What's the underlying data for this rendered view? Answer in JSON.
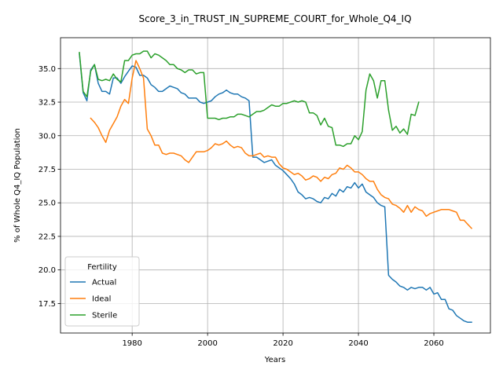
{
  "chart_data": {
    "type": "line",
    "title": "Score_3_in_TRUST_IN_SUPREME_COURT_for_Whole_Q4_IQ",
    "xlabel": "Years",
    "ylabel": "% of Whole Q4_IQ Population",
    "xlim": [
      1961,
      2075
    ],
    "ylim": [
      15.3,
      37.3
    ],
    "xticks": [
      1980,
      2000,
      2020,
      2040,
      2060
    ],
    "yticks": [
      17.5,
      20.0,
      22.5,
      25.0,
      27.5,
      30.0,
      32.5,
      35.0
    ],
    "ytick_labels": [
      "17.5",
      "20.0",
      "22.5",
      "25.0",
      "27.5",
      "30.0",
      "32.5",
      "35.0"
    ],
    "grid": true,
    "legend": {
      "title": "Fertility",
      "placement": "lower-left"
    },
    "series": [
      {
        "name": "Actual",
        "color": "#1f77b4",
        "points": [
          [
            1966,
            36.1
          ],
          [
            1967,
            33.2
          ],
          [
            1968,
            32.6
          ],
          [
            1969,
            34.9
          ],
          [
            1970,
            35.3
          ],
          [
            1971,
            33.9
          ],
          [
            1972,
            33.3
          ],
          [
            1973,
            33.3
          ],
          [
            1974,
            33.1
          ],
          [
            1975,
            34.3
          ],
          [
            1976,
            34.3
          ],
          [
            1977,
            33.9
          ],
          [
            1978,
            34.4
          ],
          [
            1979,
            34.8
          ],
          [
            1980,
            35.2
          ],
          [
            1981,
            35.1
          ],
          [
            1982,
            34.5
          ],
          [
            1983,
            34.5
          ],
          [
            1984,
            34.3
          ],
          [
            1985,
            33.8
          ],
          [
            1986,
            33.6
          ],
          [
            1987,
            33.3
          ],
          [
            1988,
            33.3
          ],
          [
            1989,
            33.5
          ],
          [
            1990,
            33.7
          ],
          [
            1991,
            33.6
          ],
          [
            1992,
            33.5
          ],
          [
            1993,
            33.2
          ],
          [
            1994,
            33.1
          ],
          [
            1995,
            32.8
          ],
          [
            1996,
            32.8
          ],
          [
            1997,
            32.8
          ],
          [
            1998,
            32.5
          ],
          [
            1999,
            32.4
          ],
          [
            2000,
            32.5
          ],
          [
            2001,
            32.6
          ],
          [
            2002,
            32.9
          ],
          [
            2003,
            33.1
          ],
          [
            2004,
            33.2
          ],
          [
            2005,
            33.4
          ],
          [
            2006,
            33.2
          ],
          [
            2007,
            33.1
          ],
          [
            2008,
            33.1
          ],
          [
            2009,
            32.9
          ],
          [
            2010,
            32.8
          ],
          [
            2011,
            32.6
          ],
          [
            2012,
            28.4
          ],
          [
            2013,
            28.4
          ],
          [
            2014,
            28.2
          ],
          [
            2015,
            28.0
          ],
          [
            2016,
            28.1
          ],
          [
            2017,
            28.2
          ],
          [
            2018,
            27.8
          ],
          [
            2019,
            27.6
          ],
          [
            2020,
            27.4
          ],
          [
            2021,
            27.1
          ],
          [
            2022,
            26.8
          ],
          [
            2023,
            26.4
          ],
          [
            2024,
            25.8
          ],
          [
            2025,
            25.6
          ],
          [
            2026,
            25.3
          ],
          [
            2027,
            25.4
          ],
          [
            2028,
            25.3
          ],
          [
            2029,
            25.1
          ],
          [
            2030,
            25.0
          ],
          [
            2031,
            25.4
          ],
          [
            2032,
            25.3
          ],
          [
            2033,
            25.7
          ],
          [
            2034,
            25.5
          ],
          [
            2035,
            26.0
          ],
          [
            2036,
            25.8
          ],
          [
            2037,
            26.2
          ],
          [
            2038,
            26.1
          ],
          [
            2039,
            26.5
          ],
          [
            2040,
            26.1
          ],
          [
            2041,
            26.4
          ],
          [
            2042,
            25.8
          ],
          [
            2043,
            25.6
          ],
          [
            2044,
            25.4
          ],
          [
            2045,
            25.0
          ],
          [
            2046,
            24.8
          ],
          [
            2047,
            24.7
          ],
          [
            2048,
            19.6
          ],
          [
            2049,
            19.3
          ],
          [
            2050,
            19.1
          ],
          [
            2051,
            18.8
          ],
          [
            2052,
            18.7
          ],
          [
            2053,
            18.5
          ],
          [
            2054,
            18.7
          ],
          [
            2055,
            18.6
          ],
          [
            2056,
            18.7
          ],
          [
            2057,
            18.7
          ],
          [
            2058,
            18.5
          ],
          [
            2059,
            18.7
          ],
          [
            2060,
            18.2
          ],
          [
            2061,
            18.3
          ],
          [
            2062,
            17.8
          ],
          [
            2063,
            17.8
          ],
          [
            2064,
            17.1
          ],
          [
            2065,
            17.0
          ],
          [
            2066,
            16.6
          ],
          [
            2067,
            16.4
          ],
          [
            2068,
            16.2
          ],
          [
            2069,
            16.1
          ],
          [
            2070,
            16.1
          ]
        ]
      },
      {
        "name": "Ideal",
        "color": "#ff7f0e",
        "points": [
          [
            1969,
            31.3
          ],
          [
            1970,
            31.0
          ],
          [
            1971,
            30.6
          ],
          [
            1972,
            30.0
          ],
          [
            1973,
            29.5
          ],
          [
            1974,
            30.4
          ],
          [
            1975,
            30.9
          ],
          [
            1976,
            31.4
          ],
          [
            1977,
            32.2
          ],
          [
            1978,
            32.7
          ],
          [
            1979,
            32.4
          ],
          [
            1980,
            34.3
          ],
          [
            1981,
            35.6
          ],
          [
            1982,
            35.0
          ],
          [
            1983,
            34.3
          ],
          [
            1984,
            30.5
          ],
          [
            1985,
            30.0
          ],
          [
            1986,
            29.3
          ],
          [
            1987,
            29.3
          ],
          [
            1988,
            28.7
          ],
          [
            1989,
            28.6
          ],
          [
            1990,
            28.7
          ],
          [
            1991,
            28.7
          ],
          [
            1992,
            28.6
          ],
          [
            1993,
            28.5
          ],
          [
            1994,
            28.2
          ],
          [
            1995,
            28.0
          ],
          [
            1996,
            28.4
          ],
          [
            1997,
            28.8
          ],
          [
            1998,
            28.8
          ],
          [
            1999,
            28.8
          ],
          [
            2000,
            28.9
          ],
          [
            2001,
            29.1
          ],
          [
            2002,
            29.4
          ],
          [
            2003,
            29.3
          ],
          [
            2004,
            29.4
          ],
          [
            2005,
            29.6
          ],
          [
            2006,
            29.3
          ],
          [
            2007,
            29.1
          ],
          [
            2008,
            29.2
          ],
          [
            2009,
            29.1
          ],
          [
            2010,
            28.7
          ],
          [
            2011,
            28.5
          ],
          [
            2012,
            28.5
          ],
          [
            2013,
            28.6
          ],
          [
            2014,
            28.7
          ],
          [
            2015,
            28.4
          ],
          [
            2016,
            28.5
          ],
          [
            2017,
            28.4
          ],
          [
            2018,
            28.4
          ],
          [
            2019,
            27.9
          ],
          [
            2020,
            27.6
          ],
          [
            2021,
            27.5
          ],
          [
            2022,
            27.3
          ],
          [
            2023,
            27.1
          ],
          [
            2024,
            27.2
          ],
          [
            2025,
            27.0
          ],
          [
            2026,
            26.7
          ],
          [
            2027,
            26.8
          ],
          [
            2028,
            27.0
          ],
          [
            2029,
            26.9
          ],
          [
            2030,
            26.6
          ],
          [
            2031,
            26.9
          ],
          [
            2032,
            26.8
          ],
          [
            2033,
            27.1
          ],
          [
            2034,
            27.2
          ],
          [
            2035,
            27.6
          ],
          [
            2036,
            27.5
          ],
          [
            2037,
            27.8
          ],
          [
            2038,
            27.6
          ],
          [
            2039,
            27.3
          ],
          [
            2040,
            27.3
          ],
          [
            2041,
            27.1
          ],
          [
            2042,
            26.8
          ],
          [
            2043,
            26.6
          ],
          [
            2044,
            26.6
          ],
          [
            2045,
            26.0
          ],
          [
            2046,
            25.6
          ],
          [
            2047,
            25.4
          ],
          [
            2048,
            25.3
          ],
          [
            2049,
            24.9
          ],
          [
            2050,
            24.8
          ],
          [
            2051,
            24.6
          ],
          [
            2052,
            24.3
          ],
          [
            2053,
            24.8
          ],
          [
            2054,
            24.3
          ],
          [
            2055,
            24.7
          ],
          [
            2056,
            24.5
          ],
          [
            2057,
            24.4
          ],
          [
            2058,
            24.0
          ],
          [
            2059,
            24.2
          ],
          [
            2060,
            24.3
          ],
          [
            2061,
            24.4
          ],
          [
            2062,
            24.5
          ],
          [
            2063,
            24.5
          ],
          [
            2064,
            24.5
          ],
          [
            2065,
            24.4
          ],
          [
            2066,
            24.3
          ],
          [
            2067,
            23.7
          ],
          [
            2068,
            23.7
          ],
          [
            2069,
            23.4
          ],
          [
            2070,
            23.1
          ]
        ]
      },
      {
        "name": "Sterile",
        "color": "#2ca02c",
        "points": [
          [
            1966,
            36.2
          ],
          [
            1967,
            33.3
          ],
          [
            1968,
            32.9
          ],
          [
            1969,
            34.8
          ],
          [
            1970,
            35.3
          ],
          [
            1971,
            34.2
          ],
          [
            1972,
            34.1
          ],
          [
            1973,
            34.2
          ],
          [
            1974,
            34.1
          ],
          [
            1975,
            34.6
          ],
          [
            1976,
            34.2
          ],
          [
            1977,
            34.0
          ],
          [
            1978,
            35.6
          ],
          [
            1979,
            35.6
          ],
          [
            1980,
            36.0
          ],
          [
            1981,
            36.1
          ],
          [
            1982,
            36.1
          ],
          [
            1983,
            36.3
          ],
          [
            1984,
            36.3
          ],
          [
            1985,
            35.8
          ],
          [
            1986,
            36.1
          ],
          [
            1987,
            36.0
          ],
          [
            1988,
            35.8
          ],
          [
            1989,
            35.6
          ],
          [
            1990,
            35.3
          ],
          [
            1991,
            35.3
          ],
          [
            1992,
            35.0
          ],
          [
            1993,
            34.9
          ],
          [
            1994,
            34.7
          ],
          [
            1995,
            34.9
          ],
          [
            1996,
            34.9
          ],
          [
            1997,
            34.6
          ],
          [
            1998,
            34.7
          ],
          [
            1999,
            34.7
          ],
          [
            2000,
            31.3
          ],
          [
            2001,
            31.3
          ],
          [
            2002,
            31.3
          ],
          [
            2003,
            31.2
          ],
          [
            2004,
            31.3
          ],
          [
            2005,
            31.3
          ],
          [
            2006,
            31.4
          ],
          [
            2007,
            31.4
          ],
          [
            2008,
            31.6
          ],
          [
            2009,
            31.6
          ],
          [
            2010,
            31.5
          ],
          [
            2011,
            31.4
          ],
          [
            2012,
            31.6
          ],
          [
            2013,
            31.8
          ],
          [
            2014,
            31.8
          ],
          [
            2015,
            31.9
          ],
          [
            2016,
            32.1
          ],
          [
            2017,
            32.3
          ],
          [
            2018,
            32.2
          ],
          [
            2019,
            32.2
          ],
          [
            2020,
            32.4
          ],
          [
            2021,
            32.4
          ],
          [
            2022,
            32.5
          ],
          [
            2023,
            32.6
          ],
          [
            2024,
            32.5
          ],
          [
            2025,
            32.6
          ],
          [
            2026,
            32.5
          ],
          [
            2027,
            31.7
          ],
          [
            2028,
            31.7
          ],
          [
            2029,
            31.5
          ],
          [
            2030,
            30.8
          ],
          [
            2031,
            31.3
          ],
          [
            2032,
            30.7
          ],
          [
            2033,
            30.6
          ],
          [
            2034,
            29.3
          ],
          [
            2035,
            29.3
          ],
          [
            2036,
            29.2
          ],
          [
            2037,
            29.4
          ],
          [
            2038,
            29.4
          ],
          [
            2039,
            30.0
          ],
          [
            2040,
            29.7
          ],
          [
            2041,
            30.3
          ],
          [
            2042,
            33.4
          ],
          [
            2043,
            34.6
          ],
          [
            2044,
            34.1
          ],
          [
            2045,
            32.8
          ],
          [
            2046,
            34.1
          ],
          [
            2047,
            34.1
          ],
          [
            2048,
            31.9
          ],
          [
            2049,
            30.4
          ],
          [
            2050,
            30.7
          ],
          [
            2051,
            30.2
          ],
          [
            2052,
            30.5
          ],
          [
            2053,
            30.1
          ],
          [
            2054,
            31.6
          ],
          [
            2055,
            31.5
          ],
          [
            2056,
            32.5
          ]
        ]
      }
    ]
  }
}
